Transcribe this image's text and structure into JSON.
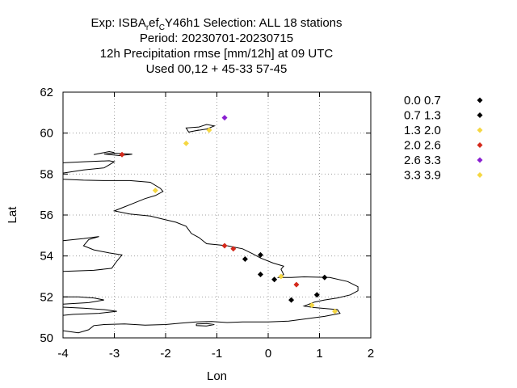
{
  "chart_data": {
    "type": "scatter",
    "title_lines": [
      {
        "parts": [
          [
            "Exp: ISBA",
            ""
          ],
          [
            "r",
            "sub"
          ],
          [
            "ef",
            ""
          ],
          [
            "C",
            "sub"
          ],
          [
            "Y46h1   Selection: ALL     18 stations",
            ""
          ]
        ]
      },
      {
        "parts": [
          [
            "Period: 20230701-20230715",
            ""
          ]
        ]
      },
      {
        "parts": [
          [
            "12h Precipitation rmse [mm/12h] at  09 UTC",
            ""
          ]
        ]
      },
      {
        "parts": [
          [
            "Used  00,12  + 45-33 57-45",
            ""
          ]
        ]
      }
    ],
    "xlabel": "Lon",
    "ylabel": "Lat",
    "xlim": [
      -4,
      2
    ],
    "ylim": [
      50,
      62
    ],
    "xticks": [
      -4,
      -3,
      -2,
      -1,
      0,
      1,
      2
    ],
    "yticks": [
      50,
      52,
      54,
      56,
      58,
      60,
      62
    ],
    "grid": true,
    "legend_placement": "right",
    "legend": [
      {
        "label": "0.0 0.7",
        "color": "#000000"
      },
      {
        "label": "0.7 1.3",
        "color": "#000000"
      },
      {
        "label": "1.3 2.0",
        "color": "#f5d742"
      },
      {
        "label": "2.0 2.6",
        "color": "#d42a1c"
      },
      {
        "label": "2.6 3.3",
        "color": "#8a1fd1"
      },
      {
        "label": "3.3 3.9",
        "color": "#f5d742"
      }
    ],
    "points": [
      {
        "lon": -0.85,
        "lat": 60.75,
        "cls": 4
      },
      {
        "lon": -1.15,
        "lat": 60.15,
        "cls": 2
      },
      {
        "lon": -1.6,
        "lat": 59.5,
        "cls": 5
      },
      {
        "lon": -2.85,
        "lat": 58.95,
        "cls": 3
      },
      {
        "lon": -2.2,
        "lat": 57.2,
        "cls": 2
      },
      {
        "lon": -0.85,
        "lat": 54.5,
        "cls": 3
      },
      {
        "lon": -0.68,
        "lat": 54.35,
        "cls": 3
      },
      {
        "lon": -0.15,
        "lat": 54.05,
        "cls": 1
      },
      {
        "lon": -0.45,
        "lat": 53.85,
        "cls": 0
      },
      {
        "lon": -0.15,
        "lat": 53.1,
        "cls": 1
      },
      {
        "lon": 0.12,
        "lat": 52.85,
        "cls": 0
      },
      {
        "lon": 0.25,
        "lat": 53.0,
        "cls": 2
      },
      {
        "lon": 1.1,
        "lat": 52.95,
        "cls": 1
      },
      {
        "lon": 0.55,
        "lat": 52.6,
        "cls": 3
      },
      {
        "lon": 0.95,
        "lat": 52.1,
        "cls": 0
      },
      {
        "lon": 0.45,
        "lat": 51.85,
        "cls": 1
      },
      {
        "lon": 0.85,
        "lat": 51.6,
        "cls": 2
      },
      {
        "lon": 1.3,
        "lat": 51.3,
        "cls": 5
      }
    ],
    "coastlines": [
      [
        [
          -4,
          58.55
        ],
        [
          -3.6,
          58.6
        ],
        [
          -3.1,
          58.65
        ],
        [
          -3.0,
          58.6
        ],
        [
          -3.1,
          58.45
        ],
        [
          -3.2,
          58.3
        ],
        [
          -3.6,
          58.2
        ],
        [
          -4,
          58.05
        ]
      ],
      [
        [
          -4,
          57.75
        ],
        [
          -3.6,
          57.7
        ],
        [
          -3.2,
          57.68
        ],
        [
          -2.7,
          57.68
        ],
        [
          -2.3,
          57.6
        ],
        [
          -2.1,
          57.3
        ],
        [
          -2.05,
          57.15
        ],
        [
          -2.2,
          56.95
        ],
        [
          -2.4,
          56.8
        ],
        [
          -2.6,
          56.6
        ],
        [
          -2.8,
          56.4
        ],
        [
          -3.0,
          56.2
        ],
        [
          -2.7,
          56.05
        ],
        [
          -2.3,
          55.95
        ],
        [
          -2.05,
          55.8
        ],
        [
          -1.8,
          55.65
        ],
        [
          -1.6,
          55.45
        ],
        [
          -1.5,
          55.1
        ],
        [
          -1.35,
          54.9
        ],
        [
          -1.2,
          54.6
        ],
        [
          -0.8,
          54.5
        ],
        [
          -0.5,
          54.35
        ],
        [
          -0.3,
          54.1
        ],
        [
          -0.15,
          53.9
        ],
        [
          0.1,
          53.65
        ],
        [
          0.3,
          53.5
        ],
        [
          0.25,
          53.35
        ],
        [
          0.3,
          53.1
        ],
        [
          0.2,
          52.95
        ],
        [
          0.45,
          52.95
        ],
        [
          0.7,
          52.98
        ],
        [
          1.2,
          52.95
        ],
        [
          1.55,
          52.75
        ],
        [
          1.75,
          52.5
        ],
        [
          1.75,
          52.3
        ],
        [
          1.6,
          52.1
        ],
        [
          1.35,
          51.95
        ],
        [
          1.1,
          51.85
        ],
        [
          0.9,
          51.75
        ],
        [
          0.7,
          51.55
        ],
        [
          0.9,
          51.48
        ],
        [
          1.35,
          51.38
        ],
        [
          1.4,
          51.2
        ],
        [
          1.1,
          51.05
        ],
        [
          0.8,
          50.95
        ],
        [
          0.4,
          50.82
        ],
        [
          0.0,
          50.78
        ],
        [
          -0.5,
          50.78
        ],
        [
          -0.8,
          50.75
        ],
        [
          -1.1,
          50.8
        ],
        [
          -1.4,
          50.78
        ],
        [
          -1.7,
          50.72
        ],
        [
          -2.0,
          50.65
        ],
        [
          -2.4,
          50.62
        ],
        [
          -2.8,
          50.68
        ],
        [
          -3.2,
          50.65
        ],
        [
          -3.4,
          50.6
        ],
        [
          -3.5,
          50.4
        ],
        [
          -3.7,
          50.25
        ],
        [
          -4,
          50.35
        ]
      ],
      [
        [
          -4,
          52.0
        ],
        [
          -3.7,
          52.0
        ],
        [
          -3.4,
          51.95
        ],
        [
          -3.2,
          51.85
        ],
        [
          -3.5,
          51.72
        ],
        [
          -4,
          51.65
        ]
      ],
      [
        [
          -4,
          51.5
        ],
        [
          -3.6,
          51.45
        ],
        [
          -3.2,
          51.38
        ],
        [
          -2.95,
          51.3
        ],
        [
          -3.3,
          51.2
        ],
        [
          -3.8,
          51.15
        ],
        [
          -4,
          51.1
        ]
      ],
      [
        [
          -4,
          54.75
        ],
        [
          -3.6,
          54.85
        ],
        [
          -3.3,
          54.95
        ],
        [
          -3.5,
          54.8
        ],
        [
          -3.6,
          54.5
        ],
        [
          -3.4,
          54.3
        ],
        [
          -3.1,
          54.15
        ],
        [
          -2.85,
          54.05
        ],
        [
          -2.95,
          53.75
        ],
        [
          -3.05,
          53.4
        ],
        [
          -3.4,
          53.3
        ],
        [
          -4,
          53.25
        ]
      ],
      [
        [
          -1.4,
          50.68
        ],
        [
          -1.2,
          50.7
        ],
        [
          -1.05,
          50.65
        ],
        [
          -1.2,
          50.58
        ],
        [
          -1.4,
          50.6
        ],
        [
          -1.4,
          50.68
        ]
      ],
      [
        [
          -1.45,
          60.1
        ],
        [
          -1.2,
          60.2
        ],
        [
          -1.05,
          60.35
        ],
        [
          -1.2,
          60.42
        ],
        [
          -1.35,
          60.3
        ],
        [
          -1.6,
          60.25
        ],
        [
          -1.55,
          60.05
        ],
        [
          -1.35,
          60.15
        ]
      ],
      [
        [
          -3.2,
          58.98
        ],
        [
          -3.0,
          59.02
        ],
        [
          -2.65,
          58.97
        ],
        [
          -2.9,
          58.9
        ],
        [
          -3.2,
          58.98
        ]
      ],
      [
        [
          -3.4,
          58.95
        ],
        [
          -3.1,
          59.1
        ],
        [
          -3.0,
          59.05
        ]
      ]
    ]
  }
}
